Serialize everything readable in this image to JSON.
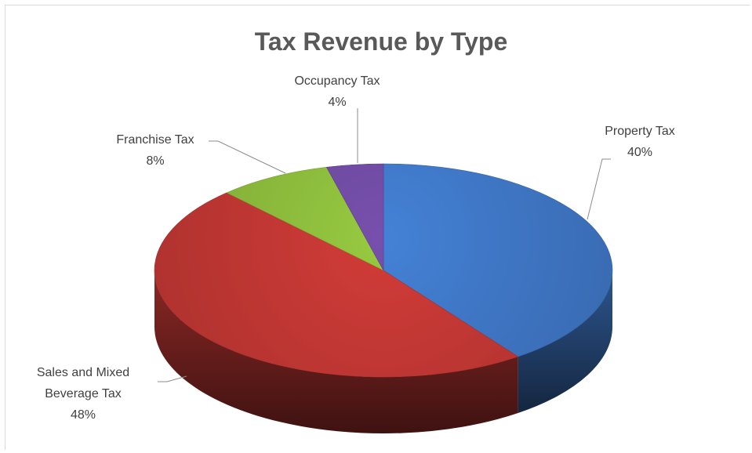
{
  "chart_data": {
    "type": "pie",
    "title": "Tax Revenue by Type",
    "slices": [
      {
        "label": "Property Tax",
        "value": 40,
        "value_label": "40%",
        "color": "#3f77c6"
      },
      {
        "label": "Sales and Mixed Beverage Tax",
        "label_lines": [
          "Sales and Mixed",
          "Beverage Tax"
        ],
        "value": 48,
        "value_label": "48%",
        "color": "#c23834"
      },
      {
        "label": "Franchise Tax",
        "value": 8,
        "value_label": "8%",
        "color": "#8cbb3c"
      },
      {
        "label": "Occupancy Tax",
        "value": 4,
        "value_label": "4%",
        "color": "#6e4aa0"
      }
    ],
    "start": "top",
    "direction": "clockwise",
    "style": "3d",
    "legend": "none"
  }
}
